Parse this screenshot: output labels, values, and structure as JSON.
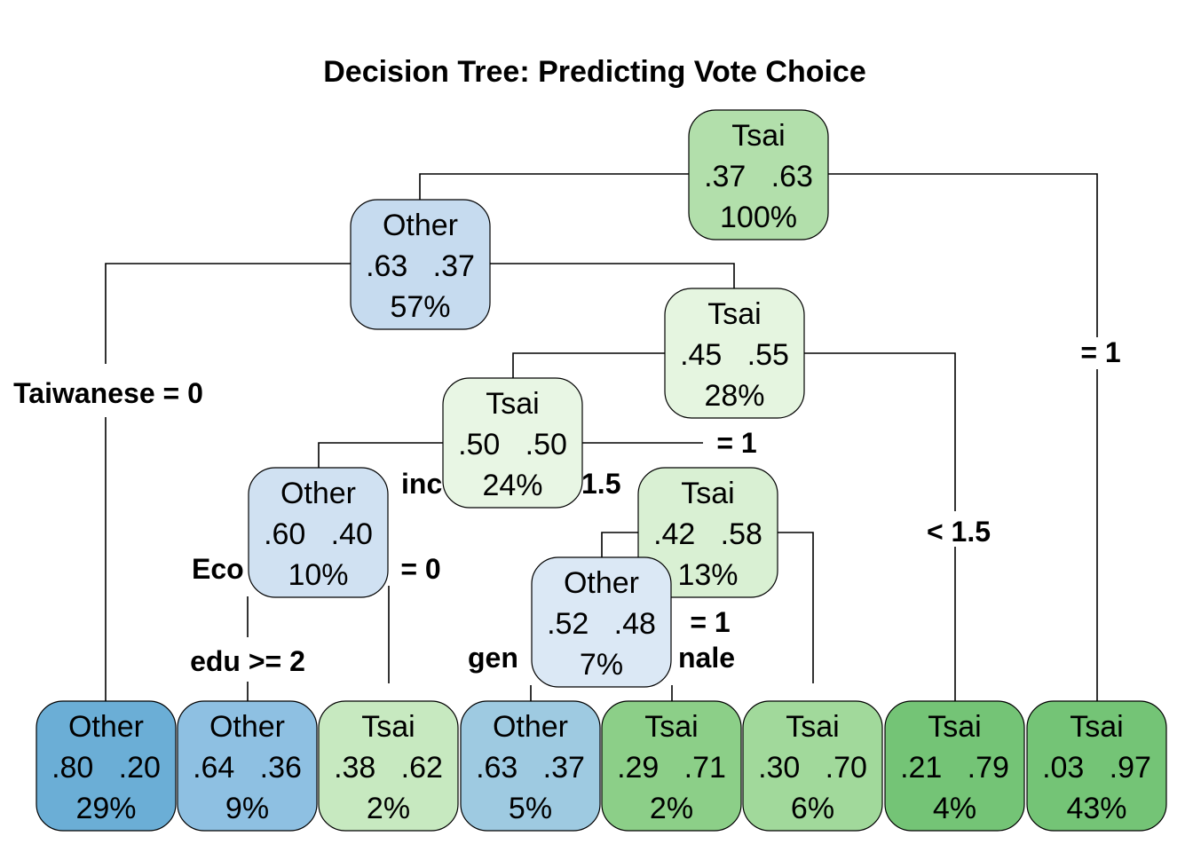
{
  "title": "Decision Tree: Predicting Vote Choice",
  "colors": {
    "other_dark": "#6baed6",
    "other_mid": "#8ec0e2",
    "other_light": "#9ecae1",
    "other_pale": "#c6dbef",
    "other_palest": "#dbe8f5",
    "tsai_dark": "#74c476",
    "tsai_mid": "#8ccf88",
    "tsai_light": "#a1d99b",
    "tsai_pale": "#b6e1ae",
    "tsai_paler": "#c7e9c0",
    "tsai_palest": "#e5f5e0"
  },
  "nodes": [
    {
      "id": "n1",
      "class": "Tsai",
      "probs": ".37   .63",
      "pct": "100%",
      "color": "#b2dfab"
    },
    {
      "id": "n2",
      "class": "Other",
      "probs": ".63   .37",
      "pct": "57%",
      "color": "#c6dbef"
    },
    {
      "id": "n5",
      "class": "Tsai",
      "probs": ".45   .55",
      "pct": "28%",
      "color": "#e5f5e0"
    },
    {
      "id": "n10",
      "class": "Tsai",
      "probs": ".50   .50",
      "pct": "24%",
      "color": "#e8f6e4"
    },
    {
      "id": "n20",
      "class": "Other",
      "probs": ".60   .40",
      "pct": "10%",
      "color": "#d0e1f2"
    },
    {
      "id": "n21",
      "class": "Tsai",
      "probs": ".42   .58",
      "pct": "13%",
      "color": "#d9f0d3"
    },
    {
      "id": "n42",
      "class": "Other",
      "probs": ".52   .48",
      "pct": "7%",
      "color": "#dbe8f5"
    },
    {
      "id": "l1",
      "class": "Other",
      "probs": ".80   .20",
      "pct": "29%",
      "color": "#6baed6"
    },
    {
      "id": "l2",
      "class": "Other",
      "probs": ".64   .36",
      "pct": "9%",
      "color": "#8ec0e2"
    },
    {
      "id": "l3",
      "class": "Tsai",
      "probs": ".38   .62",
      "pct": "2%",
      "color": "#c7e9c0"
    },
    {
      "id": "l4",
      "class": "Other",
      "probs": ".63   .37",
      "pct": "5%",
      "color": "#9ecae1"
    },
    {
      "id": "l5",
      "class": "Tsai",
      "probs": ".29   .71",
      "pct": "2%",
      "color": "#8ccf88"
    },
    {
      "id": "l6",
      "class": "Tsai",
      "probs": ".30   .70",
      "pct": "6%",
      "color": "#a1d99b"
    },
    {
      "id": "l7",
      "class": "Tsai",
      "probs": ".21   .79",
      "pct": "4%",
      "color": "#74c476"
    },
    {
      "id": "l8",
      "class": "Tsai",
      "probs": ".03   .97",
      "pct": "43%",
      "color": "#74c476"
    }
  ],
  "split_labels": [
    {
      "id": "s_right_root",
      "text": "= 1"
    },
    {
      "id": "s_taiwanese",
      "text": "Taiwanese = 0"
    },
    {
      "id": "s_n10_right",
      "text": "= 1"
    },
    {
      "id": "s_income_a",
      "text": "inc"
    },
    {
      "id": "s_income_b",
      "text": "1.5"
    },
    {
      "id": "s_n5_right",
      "text": "< 1.5"
    },
    {
      "id": "s_eco",
      "text": "Eco"
    },
    {
      "id": "s_n20_right",
      "text": "= 0"
    },
    {
      "id": "s_n21_right",
      "text": "= 1"
    },
    {
      "id": "s_edu",
      "text": "edu >= 2"
    },
    {
      "id": "s_gender_a",
      "text": "gen"
    },
    {
      "id": "s_gender_b",
      "text": "nale"
    }
  ]
}
